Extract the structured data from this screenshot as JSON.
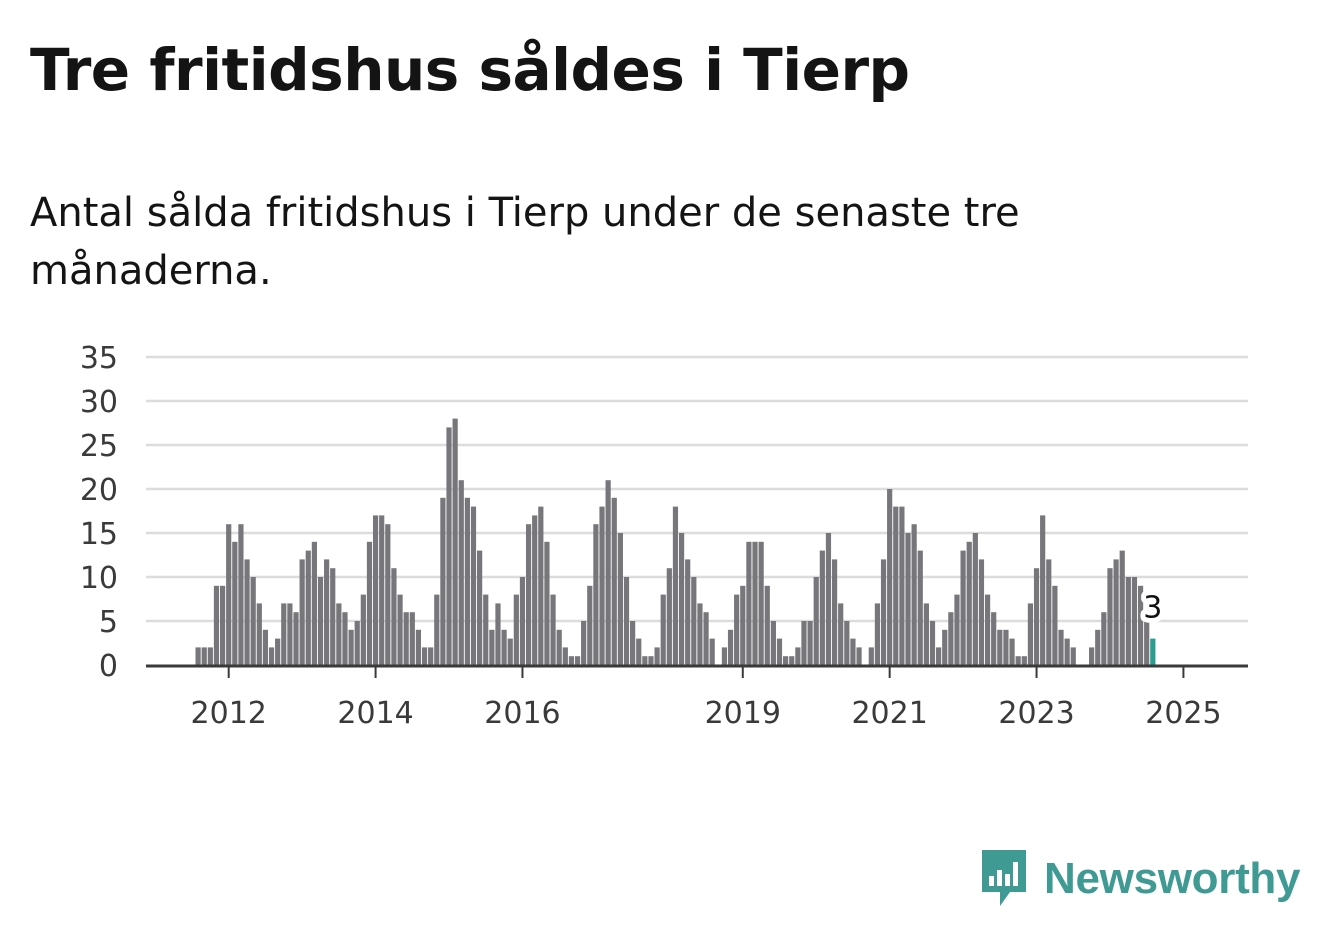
{
  "title": "Tre fritidshus såldes i Tierp",
  "subtitle": "Antal sålda fritidshus i Tierp under de senaste tre månaderna.",
  "brand": {
    "name": "Newsworthy",
    "color": "#3f9a93",
    "icon": "newsworthy-logo-icon"
  },
  "chart_data": {
    "type": "bar",
    "ylim": [
      0,
      35
    ],
    "yticks": [
      0,
      5,
      10,
      15,
      20,
      25,
      30,
      35
    ],
    "xticks": [
      {
        "label": "2012",
        "index": 5
      },
      {
        "label": "2014",
        "index": 29
      },
      {
        "label": "2016",
        "index": 53
      },
      {
        "label": "2019",
        "index": 89
      },
      {
        "label": "2021",
        "index": 113
      },
      {
        "label": "2023",
        "index": 137
      },
      {
        "label": "2025",
        "index": 161
      }
    ],
    "grid": true,
    "bar_color": "#77767a",
    "highlight_color": "#2a9d8f",
    "last_value_label": "3",
    "values": [
      2,
      2,
      2,
      9,
      9,
      16,
      14,
      16,
      12,
      10,
      7,
      4,
      2,
      3,
      7,
      7,
      6,
      12,
      13,
      14,
      10,
      12,
      11,
      7,
      6,
      4,
      5,
      8,
      14,
      17,
      17,
      16,
      11,
      8,
      6,
      6,
      4,
      2,
      2,
      8,
      19,
      27,
      28,
      21,
      19,
      18,
      13,
      8,
      4,
      7,
      4,
      3,
      8,
      10,
      16,
      17,
      18,
      14,
      8,
      4,
      2,
      1,
      1,
      5,
      9,
      16,
      18,
      21,
      19,
      15,
      10,
      5,
      3,
      1,
      1,
      2,
      8,
      11,
      18,
      15,
      12,
      10,
      7,
      6,
      3,
      0,
      2,
      4,
      8,
      9,
      14,
      14,
      14,
      9,
      5,
      3,
      1,
      1,
      2,
      5,
      5,
      10,
      13,
      15,
      12,
      7,
      5,
      3,
      2,
      0,
      2,
      7,
      12,
      20,
      18,
      18,
      15,
      16,
      13,
      7,
      5,
      2,
      4,
      6,
      8,
      13,
      14,
      15,
      12,
      8,
      6,
      4,
      4,
      3,
      1,
      1,
      7,
      11,
      17,
      12,
      9,
      4,
      3,
      2,
      0,
      0,
      2,
      4,
      6,
      11,
      12,
      13,
      10,
      10,
      9,
      5,
      3
    ]
  }
}
